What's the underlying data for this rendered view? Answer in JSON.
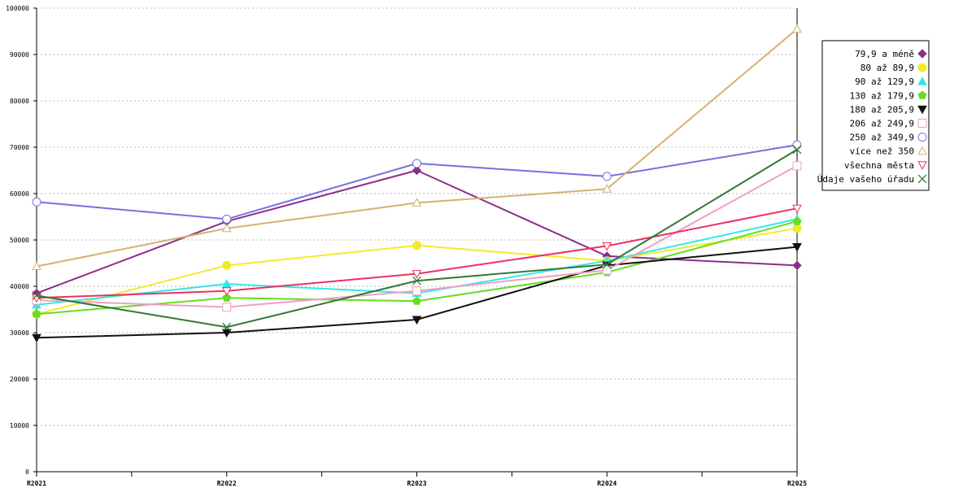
{
  "chart_data": {
    "type": "line",
    "title": "",
    "xlabel": "",
    "ylabel": "",
    "categories": [
      "R2021",
      "R2022",
      "R2023",
      "R2024",
      "R2025"
    ],
    "ylim": [
      0,
      100000
    ],
    "yticks": [
      "0",
      "10000",
      "20000",
      "30000",
      "40000",
      "50000",
      "60000",
      "70000",
      "80000",
      "90000",
      "100000"
    ],
    "grid": true,
    "legend_position": "right",
    "series": [
      {
        "name": "79,9 a méně",
        "color": "#8b2e8b",
        "marker": "diamond",
        "values": [
          38500,
          54000,
          65000,
          46500,
          44500
        ]
      },
      {
        "name": "80 až 89,9",
        "color": "#f2ea2a",
        "marker": "circle",
        "values": [
          34000,
          44500,
          48800,
          45500,
          52500
        ]
      },
      {
        "name": "90 až 129,9",
        "color": "#33e8e8",
        "marker": "triangle-up",
        "values": [
          36000,
          40500,
          38500,
          45500,
          54500
        ]
      },
      {
        "name": "130 až 179,9",
        "color": "#66dd22",
        "marker": "pentagon",
        "values": [
          34000,
          37500,
          36800,
          43000,
          54000
        ]
      },
      {
        "name": "180 až 205,9",
        "color": "#111111",
        "marker": "triangle-down",
        "values": [
          28900,
          30000,
          32800,
          44500,
          48500
        ]
      },
      {
        "name": "206 až 249,9",
        "color": "#f0a0c0",
        "marker": "square-open",
        "values": [
          37000,
          35500,
          39000,
          43500,
          66000
        ]
      },
      {
        "name": "250 až 349,9",
        "color": "#7a6fe0",
        "marker": "circle-open",
        "values": [
          58200,
          54500,
          66500,
          63700,
          70500
        ]
      },
      {
        "name": "více než 350",
        "color": "#d8b070",
        "marker": "triangle-up-open",
        "values": [
          44300,
          52500,
          58000,
          61000,
          95500
        ]
      },
      {
        "name": "všechna města",
        "color": "#ee3060",
        "marker": "triangle-down-open",
        "values": [
          37500,
          39000,
          42700,
          48700,
          56800
        ]
      },
      {
        "name": "Údaje vašeho úřadu",
        "color": "#337733",
        "marker": "x",
        "values": [
          38000,
          31200,
          41200,
          44700,
          69500
        ]
      }
    ]
  }
}
